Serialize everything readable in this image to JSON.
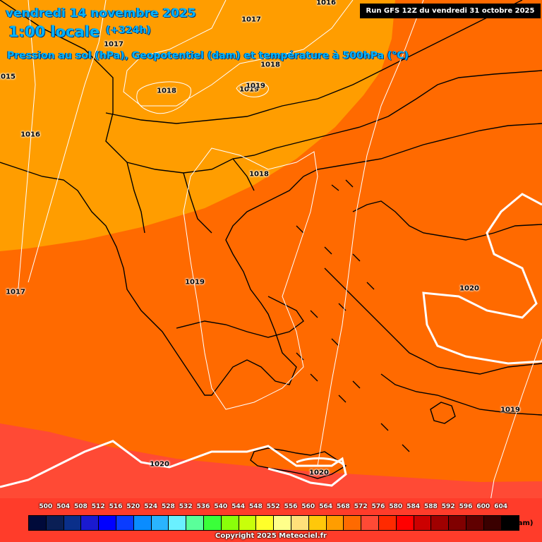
{
  "header": {
    "date": "vendredi 14 novembre 2025",
    "hour": "1:00 locale",
    "offset": "(+324h)",
    "parameters": "Pression au sol (hPa), Geopotentiel (dam) et température à 500hPa (°C)",
    "run": "Run GFS 12Z du vendredi 31 octobre 2025"
  },
  "colors": {
    "zone_568": "#ff9d00",
    "zone_572": "#ff6a00",
    "zone_576": "#ff4a35",
    "isobar": "#ffffff",
    "coastline": "#000000"
  },
  "isobars": [
    "1016",
    "1017",
    "1015",
    "1018",
    "1018",
    "1019",
    "1019",
    "1017",
    "1016",
    "1018",
    "1017",
    "1019",
    "1020",
    "1019",
    "1020",
    "1020"
  ],
  "legend": {
    "values": [
      "500",
      "504",
      "508",
      "512",
      "516",
      "520",
      "524",
      "528",
      "532",
      "536",
      "540",
      "544",
      "548",
      "552",
      "556",
      "560",
      "564",
      "568",
      "572",
      "576",
      "580",
      "584",
      "588",
      "592",
      "596",
      "600",
      "604"
    ],
    "colors": [
      "#000a3a",
      "#0a1f55",
      "#0a2f8a",
      "#1a1ad0",
      "#0000ff",
      "#0a3cff",
      "#0a8cff",
      "#2ab4ff",
      "#6af0ff",
      "#5aff9a",
      "#3aff3a",
      "#8aff0a",
      "#c8ff0a",
      "#ffff2a",
      "#ffff8a",
      "#ffe07a",
      "#ffc80a",
      "#ff9d00",
      "#ff6a00",
      "#ff4a35",
      "#ff2a00",
      "#ff0000",
      "#cc0000",
      "#a00000",
      "#800000",
      "#600000",
      "#3a0000",
      "#000000"
    ],
    "unit": "(dam)"
  },
  "copyright": "Copyright 2025 Meteociel.fr"
}
